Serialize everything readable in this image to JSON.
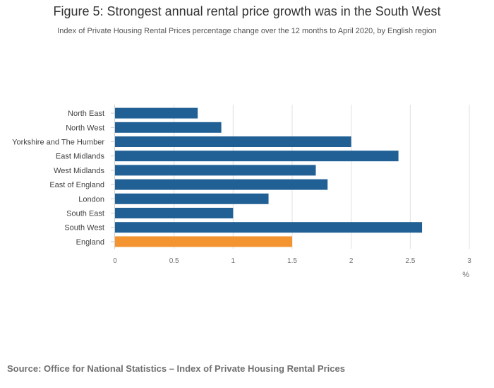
{
  "title": "Figure 5: Strongest annual rental price growth was in the South West",
  "subtitle": "Index of Private Housing Rental Prices percentage change over the 12 months to April 2020, by English region",
  "source": "Source: Office for National Statistics – Index of Private Housing Rental Prices",
  "colors": {
    "region": "#206095",
    "england": "#F39431",
    "grid": "#e0e0e0",
    "axis": "#cccccc"
  },
  "chart_data": {
    "type": "bar",
    "orientation": "horizontal",
    "categories": [
      "North East",
      "North West",
      "Yorkshire and The Humber",
      "East Midlands",
      "West Midlands",
      "East of England",
      "London",
      "South East",
      "South West",
      "England"
    ],
    "values": [
      0.7,
      0.9,
      2.0,
      2.4,
      1.7,
      1.8,
      1.3,
      1.0,
      2.6,
      1.5
    ],
    "highlight": "England",
    "xlabel": "%",
    "xlim": [
      0,
      3
    ],
    "xticks": [
      0,
      0.5,
      1,
      1.5,
      2,
      2.5,
      3
    ],
    "xtick_labels": [
      "0",
      "0.5",
      "1",
      "1.5",
      "2",
      "2.5",
      "3"
    ],
    "grid": true
  }
}
